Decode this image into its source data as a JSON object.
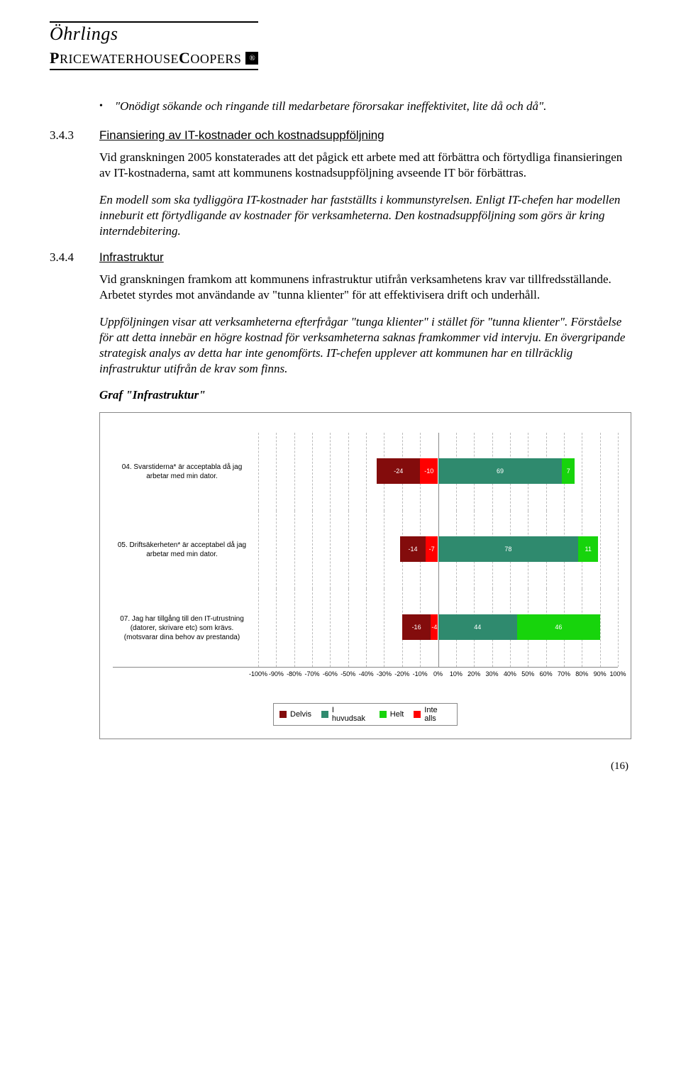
{
  "logo": {
    "top": "Öhrlings",
    "bottom_html": "PRICEWATERHOUSECOOPERS",
    "badge": "®"
  },
  "bullet": "\"Onödigt sökande och ringande till medarbetare förorsakar ineffektivitet, lite då och då\".",
  "s343": {
    "num": "3.4.3",
    "title": "Finansiering av IT-kostnader och kostnadsuppföljning",
    "p1": "Vid granskningen 2005 konstaterades att det pågick ett arbete med att förbättra och förtydliga finansieringen av IT-kostnaderna, samt att kommunens kostnadsuppföljning avseende IT bör förbättras.",
    "p2": "En modell som ska tydliggöra IT-kostnader har fastställts i kommunstyrelsen. Enligt IT-chefen har modellen inneburit ett förtydligande av kostnader för verksamheterna. Den kostnadsuppföljning som görs är kring interndebitering."
  },
  "s344": {
    "num": "3.4.4",
    "title": "Infrastruktur",
    "p1": "Vid granskningen framkom att kommunens infrastruktur utifrån verksamhetens krav var tillfredsställande. Arbetet styrdes mot användande av \"tunna klienter\" för att effektivisera drift och underhåll.",
    "p2": "Uppföljningen visar att verksamheterna efterfrågar \"tunga klienter\" i stället för \"tunna klienter\". Förståelse för att detta innebär en högre kostnad för verksamheterna saknas framkommer vid intervju. En övergripande strategisk analys av detta har inte genomförts. IT-chefen upplever att kommunen har en tillräcklig infrastruktur utifrån de krav som finns.",
    "graf": "Graf \"Infrastruktur\""
  },
  "chart": {
    "x_min": -100,
    "x_max": 100,
    "ticks": [
      -100,
      -90,
      -80,
      -70,
      -60,
      -50,
      -40,
      -30,
      -20,
      -10,
      0,
      10,
      20,
      30,
      40,
      50,
      60,
      70,
      80,
      90,
      100
    ],
    "colors": {
      "delvis_neg": "#830c0c",
      "inte_alls": "#ff0000",
      "i_huvudsak": "#2f8a6e",
      "helt": "#17d40c",
      "grid": "#bbbbbb",
      "axis": "#888888"
    },
    "legend": [
      {
        "label": "Delvis",
        "color": "#830c0c"
      },
      {
        "label": "I huvudsak",
        "color": "#2f8a6e"
      },
      {
        "label": "Helt",
        "color": "#17d40c"
      },
      {
        "label": "Inte alls",
        "color": "#ff0000"
      }
    ],
    "rows": [
      {
        "label": "04. Svarstiderna* är  acceptabla då jag arbetar med  min dator.",
        "neg": [
          {
            "v": -10,
            "color": "#ff0000",
            "text": "-10"
          },
          {
            "v": -24,
            "color": "#830c0c",
            "text": "-24"
          }
        ],
        "pos": [
          {
            "v": 69,
            "color": "#2f8a6e",
            "text": "69"
          },
          {
            "v": 7,
            "color": "#17d40c",
            "text": "7"
          }
        ]
      },
      {
        "label": "05. Driftsäkerheten* är  acceptabel då jag arbetar med min dator.",
        "neg": [
          {
            "v": -7,
            "color": "#ff0000",
            "text": "-7"
          },
          {
            "v": -14,
            "color": "#830c0c",
            "text": "-14"
          }
        ],
        "pos": [
          {
            "v": 78,
            "color": "#2f8a6e",
            "text": "78"
          },
          {
            "v": 11,
            "color": "#17d40c",
            "text": "11"
          }
        ]
      },
      {
        "label": "07. Jag har  tillgång till den IT-utrustning (datorer, skrivare etc) som krävs. (motsvarar dina behov av prestanda)",
        "neg": [
          {
            "v": -4,
            "color": "#ff0000",
            "text": "-4"
          },
          {
            "v": -16,
            "color": "#830c0c",
            "text": "-16"
          }
        ],
        "pos": [
          {
            "v": 44,
            "color": "#2f8a6e",
            "text": "44"
          },
          {
            "v": 46,
            "color": "#17d40c",
            "text": "46"
          }
        ]
      }
    ]
  },
  "page_num": "(16)"
}
